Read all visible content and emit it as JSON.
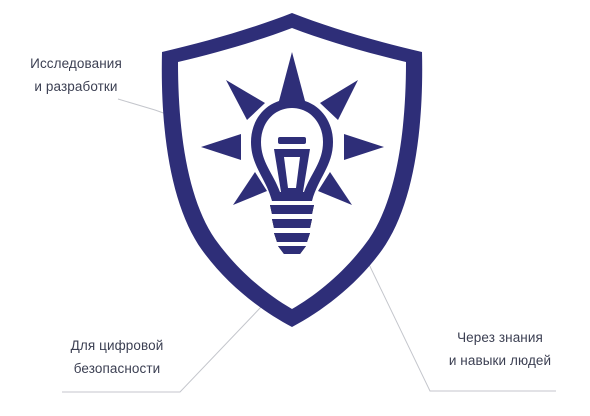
{
  "colors": {
    "shield": "#2e2e78",
    "leader_line": "#c4c6cc",
    "label_text": "#3b3f52",
    "background": "#ffffff"
  },
  "icons": {
    "shield": "shield-icon",
    "bulb": "lightbulb-icon",
    "rays": "sun-rays-icon"
  },
  "labels": {
    "rnd": {
      "line1": "Исследования",
      "line2": "и разработки"
    },
    "digital_security": {
      "line1": "Для цифровой",
      "line2": "безопасности"
    },
    "people": {
      "line1": "Через знания",
      "line2": "и навыки людей"
    }
  }
}
